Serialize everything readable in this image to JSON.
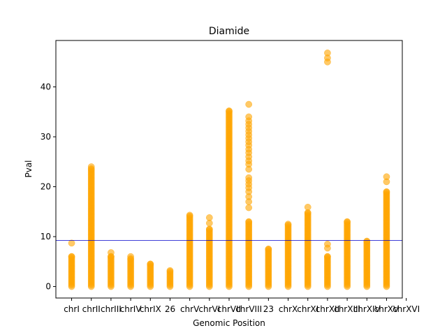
{
  "chart_data": {
    "type": "scatter",
    "title": "Diamide",
    "xlabel": "Genomic Position",
    "ylabel": "Pval",
    "ylim": [
      -2.3,
      49.3
    ],
    "yticks": [
      0,
      10,
      20,
      30,
      40
    ],
    "xlim": [
      -0.8,
      16.8
    ],
    "grid": false,
    "threshold_line": {
      "y": 9.25,
      "color": "#0000cc"
    },
    "marker_color": "#ffa500",
    "categories": [
      "chrI",
      "chrII",
      "chrIII",
      "chrIV",
      "chrIX",
      "26",
      "chrV",
      "chrVI",
      "chrVII",
      "chrVIII",
      "23",
      "chrX",
      "chrXI",
      "chrXII",
      "chrXIII",
      "chrXIV",
      "chrXV",
      "chrXVI"
    ],
    "series": [
      {
        "category": "chrI",
        "max_continuous": 6.0,
        "outliers": [
          8.7
        ]
      },
      {
        "category": "chrII",
        "max_continuous": 23.6,
        "outliers": [
          24.0
        ]
      },
      {
        "category": "chrIII",
        "max_continuous": 6.0,
        "outliers": [
          6.8
        ]
      },
      {
        "category": "chrIV",
        "max_continuous": 5.6,
        "outliers": [
          6.0
        ]
      },
      {
        "category": "chrIX",
        "max_continuous": 4.5,
        "outliers": []
      },
      {
        "category": "26",
        "max_continuous": 3.2,
        "outliers": []
      },
      {
        "category": "chrV",
        "max_continuous": 14.3,
        "outliers": []
      },
      {
        "category": "chrVI",
        "max_continuous": 11.5,
        "outliers": [
          12.7,
          13.8
        ]
      },
      {
        "category": "chrVII",
        "max_continuous": 35.2,
        "outliers": []
      },
      {
        "category": "chrVIII",
        "max_continuous": 13.0,
        "outliers": [
          15.8,
          17.0,
          18.0,
          19.0,
          19.8,
          20.5,
          21.2,
          21.8,
          23.5,
          24.5,
          25.2,
          26.0,
          26.8,
          27.5,
          28.3,
          29.0,
          29.7,
          30.4,
          31.1,
          31.8,
          32.5,
          33.2,
          34.0,
          36.5
        ]
      },
      {
        "category": "23",
        "max_continuous": 7.5,
        "outliers": []
      },
      {
        "category": "chrX",
        "max_continuous": 12.5,
        "outliers": []
      },
      {
        "category": "chrXI",
        "max_continuous": 14.8,
        "outliers": [
          15.9
        ]
      },
      {
        "category": "chrXII",
        "max_continuous": 6.0,
        "outliers": [
          7.7,
          8.5,
          46.8,
          45.8,
          45.0
        ]
      },
      {
        "category": "chrXIII",
        "max_continuous": 13.0,
        "outliers": []
      },
      {
        "category": "chrXIV",
        "max_continuous": 9.1,
        "outliers": []
      },
      {
        "category": "chrXV",
        "max_continuous": 19.0,
        "outliers": [
          21.0,
          22.0
        ]
      }
    ]
  }
}
